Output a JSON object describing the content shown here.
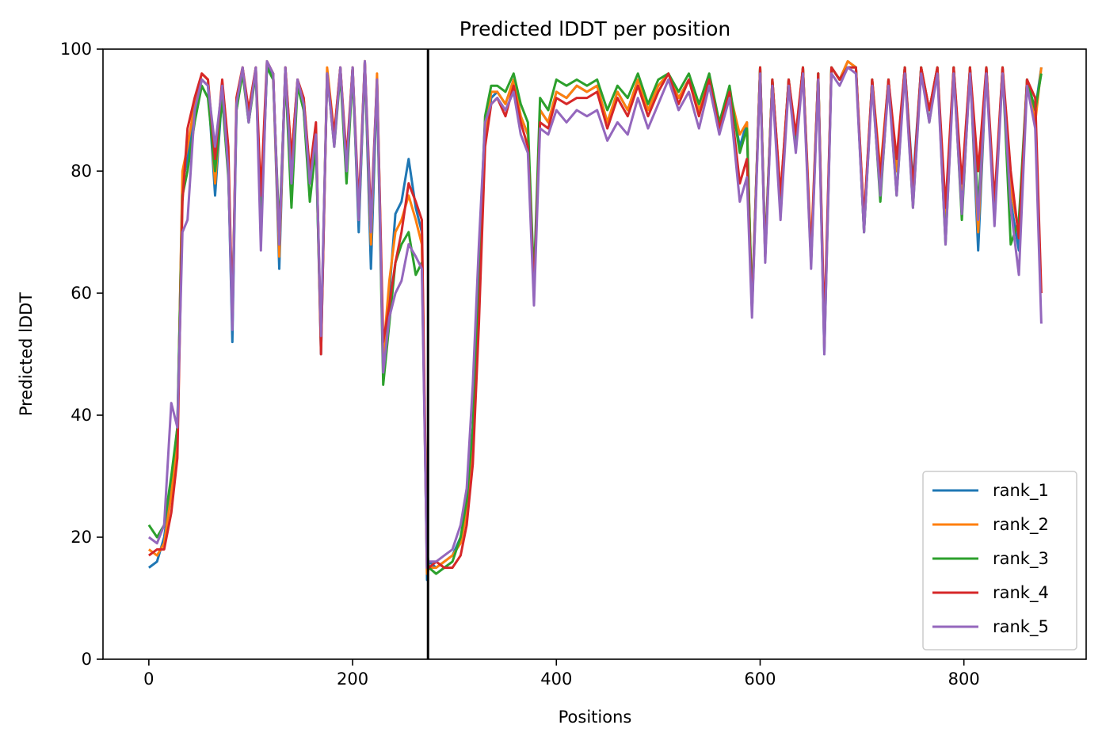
{
  "chart_data": {
    "type": "line",
    "title": "Predicted lDDT per position",
    "xlabel": "Positions",
    "ylabel": "Predicted lDDT",
    "xlim": [
      -45,
      920
    ],
    "ylim": [
      0,
      100
    ],
    "xticks": [
      0,
      200,
      400,
      600,
      800
    ],
    "yticks": [
      0,
      20,
      40,
      60,
      80,
      100
    ],
    "legend_location": "lower-right",
    "chain_break": 274,
    "series": [
      {
        "name": "rank_1",
        "color": "#1f77b4",
        "x": [
          0,
          8,
          15,
          22,
          28,
          33,
          38,
          45,
          52,
          58,
          65,
          72,
          78,
          82,
          86,
          92,
          98,
          105,
          110,
          116,
          122,
          128,
          134,
          140,
          146,
          152,
          158,
          164,
          169,
          175,
          182,
          188,
          194,
          200,
          206,
          212,
          218,
          224,
          230,
          236,
          242,
          248,
          255,
          262,
          268,
          273,
          275,
          282,
          290,
          298,
          306,
          312,
          318,
          324,
          330,
          336,
          342,
          350,
          358,
          365,
          372,
          378,
          384,
          392,
          400,
          410,
          420,
          430,
          440,
          450,
          460,
          470,
          480,
          490,
          500,
          510,
          520,
          530,
          540,
          550,
          560,
          570,
          580,
          587,
          592,
          600,
          605,
          612,
          620,
          628,
          635,
          642,
          650,
          657,
          663,
          670,
          678,
          686,
          694,
          702,
          710,
          718,
          726,
          734,
          742,
          750,
          758,
          766,
          774,
          782,
          790,
          798,
          806,
          814,
          822,
          830,
          838,
          846,
          854,
          862,
          870,
          876
        ],
        "y": [
          15,
          16,
          20,
          28,
          38,
          78,
          82,
          90,
          95,
          94,
          76,
          93,
          80,
          52,
          90,
          97,
          88,
          97,
          70,
          97,
          96,
          64,
          97,
          80,
          95,
          90,
          78,
          85,
          50,
          96,
          85,
          97,
          80,
          97,
          70,
          98,
          64,
          95,
          48,
          60,
          73,
          75,
          82,
          74,
          70,
          13,
          16,
          15,
          16,
          17,
          20,
          24,
          35,
          60,
          85,
          92,
          93,
          91,
          95,
          89,
          86,
          60,
          90,
          88,
          93,
          92,
          94,
          93,
          94,
          88,
          93,
          90,
          95,
          90,
          94,
          96,
          92,
          95,
          90,
          95,
          88,
          93,
          84,
          88,
          57,
          97,
          66,
          95,
          75,
          95,
          85,
          97,
          65,
          96,
          50,
          97,
          95,
          98,
          97,
          70,
          95,
          78,
          95,
          80,
          97,
          78,
          97,
          90,
          97,
          70,
          97,
          75,
          97,
          67,
          97,
          72,
          97,
          75,
          67,
          95,
          90,
          97
        ]
      },
      {
        "name": "rank_2",
        "color": "#ff7f0e",
        "x": [
          0,
          8,
          15,
          22,
          28,
          33,
          38,
          45,
          52,
          58,
          65,
          72,
          78,
          82,
          86,
          92,
          98,
          105,
          110,
          116,
          122,
          128,
          134,
          140,
          146,
          152,
          158,
          164,
          169,
          175,
          182,
          188,
          194,
          200,
          206,
          212,
          218,
          224,
          230,
          236,
          242,
          248,
          255,
          262,
          268,
          273,
          275,
          282,
          290,
          298,
          306,
          312,
          318,
          324,
          330,
          336,
          342,
          350,
          358,
          365,
          372,
          378,
          384,
          392,
          400,
          410,
          420,
          430,
          440,
          450,
          460,
          470,
          480,
          490,
          500,
          510,
          520,
          530,
          540,
          550,
          560,
          570,
          580,
          587,
          592,
          600,
          605,
          612,
          620,
          628,
          635,
          642,
          650,
          657,
          663,
          670,
          678,
          686,
          694,
          702,
          710,
          718,
          726,
          734,
          742,
          750,
          758,
          766,
          774,
          782,
          790,
          798,
          806,
          814,
          822,
          830,
          838,
          846,
          854,
          862,
          870,
          876
        ],
        "y": [
          18,
          17,
          19,
          27,
          36,
          80,
          84,
          91,
          96,
          95,
          78,
          94,
          82,
          55,
          92,
          97,
          89,
          97,
          72,
          98,
          96,
          66,
          97,
          82,
          95,
          92,
          79,
          87,
          51,
          97,
          86,
          97,
          81,
          97,
          72,
          98,
          68,
          96,
          50,
          62,
          70,
          72,
          76,
          72,
          68,
          14,
          15,
          15,
          16,
          17,
          19,
          24,
          34,
          58,
          86,
          93,
          93,
          91,
          95,
          89,
          86,
          61,
          90,
          88,
          93,
          92,
          94,
          93,
          94,
          88,
          93,
          90,
          95,
          90,
          94,
          96,
          92,
          95,
          90,
          95,
          88,
          93,
          86,
          88,
          58,
          97,
          66,
          95,
          76,
          95,
          85,
          97,
          67,
          96,
          51,
          97,
          95,
          98,
          97,
          72,
          95,
          80,
          95,
          80,
          97,
          76,
          97,
          90,
          97,
          72,
          97,
          77,
          97,
          70,
          97,
          73,
          97,
          77,
          70,
          95,
          88,
          97
        ]
      },
      {
        "name": "rank_3",
        "color": "#2ca02c",
        "x": [
          0,
          8,
          15,
          22,
          28,
          33,
          38,
          45,
          52,
          58,
          65,
          72,
          78,
          82,
          86,
          92,
          98,
          105,
          110,
          116,
          122,
          128,
          134,
          140,
          146,
          152,
          158,
          164,
          169,
          175,
          182,
          188,
          194,
          200,
          206,
          212,
          218,
          224,
          230,
          236,
          242,
          248,
          255,
          262,
          268,
          273,
          275,
          282,
          290,
          298,
          306,
          312,
          318,
          324,
          330,
          336,
          342,
          350,
          358,
          365,
          372,
          378,
          384,
          392,
          400,
          410,
          420,
          430,
          440,
          450,
          460,
          470,
          480,
          490,
          500,
          510,
          520,
          530,
          540,
          550,
          560,
          570,
          580,
          587,
          592,
          600,
          605,
          612,
          620,
          628,
          635,
          642,
          650,
          657,
          663,
          670,
          678,
          686,
          694,
          702,
          710,
          718,
          726,
          734,
          742,
          750,
          758,
          766,
          774,
          782,
          790,
          798,
          806,
          814,
          822,
          830,
          838,
          846,
          854,
          862,
          870,
          876
        ],
        "y": [
          22,
          20,
          22,
          30,
          38,
          76,
          80,
          88,
          94,
          92,
          80,
          92,
          79,
          57,
          90,
          96,
          88,
          96,
          72,
          97,
          95,
          70,
          96,
          74,
          94,
          90,
          75,
          84,
          52,
          96,
          84,
          96,
          78,
          96,
          72,
          97,
          70,
          94,
          45,
          55,
          65,
          68,
          70,
          63,
          65,
          18,
          15,
          14,
          15,
          16,
          20,
          26,
          38,
          65,
          89,
          94,
          94,
          93,
          96,
          91,
          88,
          62,
          92,
          90,
          95,
          94,
          95,
          94,
          95,
          90,
          94,
          92,
          96,
          91,
          95,
          96,
          93,
          96,
          91,
          96,
          88,
          94,
          83,
          87,
          58,
          97,
          67,
          95,
          75,
          95,
          84,
          97,
          65,
          96,
          52,
          97,
          95,
          97,
          97,
          70,
          95,
          75,
          95,
          76,
          97,
          74,
          97,
          88,
          97,
          68,
          97,
          72,
          97,
          74,
          97,
          72,
          97,
          68,
          72,
          95,
          90,
          96
        ]
      },
      {
        "name": "rank_4",
        "color": "#d62728",
        "x": [
          0,
          8,
          15,
          22,
          28,
          33,
          38,
          45,
          52,
          58,
          65,
          72,
          78,
          82,
          86,
          92,
          98,
          105,
          110,
          116,
          122,
          128,
          134,
          140,
          146,
          152,
          158,
          164,
          169,
          175,
          182,
          188,
          194,
          200,
          206,
          212,
          218,
          224,
          230,
          236,
          242,
          248,
          255,
          262,
          268,
          273,
          275,
          282,
          290,
          298,
          306,
          312,
          318,
          324,
          330,
          336,
          342,
          350,
          358,
          365,
          372,
          378,
          384,
          392,
          400,
          410,
          420,
          430,
          440,
          450,
          460,
          470,
          480,
          490,
          500,
          510,
          520,
          530,
          540,
          550,
          560,
          570,
          580,
          587,
          592,
          600,
          605,
          612,
          620,
          628,
          635,
          642,
          650,
          657,
          663,
          670,
          678,
          686,
          694,
          702,
          710,
          718,
          726,
          734,
          742,
          750,
          758,
          766,
          774,
          782,
          790,
          798,
          806,
          814,
          822,
          830,
          838,
          846,
          854,
          862,
          870,
          876
        ],
        "y": [
          17,
          18,
          18,
          24,
          33,
          75,
          87,
          92,
          96,
          95,
          82,
          95,
          84,
          56,
          92,
          97,
          90,
          97,
          76,
          98,
          96,
          68,
          97,
          82,
          95,
          92,
          80,
          88,
          50,
          96,
          86,
          97,
          82,
          97,
          74,
          98,
          72,
          95,
          52,
          58,
          65,
          70,
          78,
          75,
          72,
          16,
          15,
          16,
          15,
          15,
          17,
          22,
          32,
          55,
          84,
          91,
          92,
          89,
          94,
          88,
          84,
          60,
          88,
          87,
          92,
          91,
          92,
          92,
          93,
          87,
          92,
          89,
          94,
          89,
          93,
          96,
          91,
          95,
          89,
          95,
          87,
          93,
          78,
          82,
          57,
          97,
          66,
          95,
          76,
          95,
          86,
          97,
          66,
          96,
          54,
          97,
          95,
          97,
          97,
          72,
          95,
          79,
          95,
          82,
          97,
          77,
          97,
          90,
          97,
          74,
          97,
          78,
          97,
          80,
          97,
          75,
          97,
          80,
          69,
          95,
          92,
          60
        ]
      },
      {
        "name": "rank_5",
        "color": "#9467bd",
        "x": [
          0,
          8,
          15,
          22,
          28,
          33,
          38,
          45,
          52,
          58,
          65,
          72,
          78,
          82,
          86,
          92,
          98,
          105,
          110,
          116,
          122,
          128,
          134,
          140,
          146,
          152,
          158,
          164,
          169,
          175,
          182,
          188,
          194,
          200,
          206,
          212,
          218,
          224,
          230,
          236,
          242,
          248,
          255,
          262,
          268,
          273,
          275,
          282,
          290,
          298,
          306,
          312,
          318,
          324,
          330,
          336,
          342,
          350,
          358,
          365,
          372,
          378,
          384,
          392,
          400,
          410,
          420,
          430,
          440,
          450,
          460,
          470,
          480,
          490,
          500,
          510,
          520,
          530,
          540,
          550,
          560,
          570,
          580,
          587,
          592,
          600,
          605,
          612,
          620,
          628,
          635,
          642,
          650,
          657,
          663,
          670,
          678,
          686,
          694,
          702,
          710,
          718,
          726,
          734,
          742,
          750,
          758,
          766,
          774,
          782,
          790,
          798,
          806,
          814,
          822,
          830,
          838,
          846,
          854,
          862,
          870,
          876
        ],
        "y": [
          20,
          19,
          22,
          42,
          38,
          70,
          72,
          90,
          95,
          94,
          84,
          94,
          80,
          54,
          91,
          97,
          88,
          97,
          67,
          98,
          96,
          68,
          97,
          78,
          95,
          91,
          78,
          86,
          53,
          96,
          84,
          97,
          80,
          97,
          72,
          98,
          70,
          95,
          47,
          56,
          60,
          62,
          68,
          66,
          64,
          15,
          16,
          16,
          17,
          18,
          22,
          28,
          45,
          68,
          88,
          91,
          92,
          90,
          93,
          86,
          83,
          58,
          87,
          86,
          90,
          88,
          90,
          89,
          90,
          85,
          88,
          86,
          92,
          87,
          91,
          95,
          90,
          93,
          87,
          94,
          86,
          92,
          75,
          79,
          56,
          96,
          65,
          94,
          72,
          94,
          83,
          96,
          64,
          95,
          50,
          96,
          94,
          97,
          96,
          70,
          94,
          76,
          94,
          76,
          96,
          74,
          96,
          88,
          96,
          68,
          96,
          73,
          96,
          72,
          96,
          71,
          96,
          74,
          63,
          94,
          87,
          55
        ]
      }
    ]
  }
}
